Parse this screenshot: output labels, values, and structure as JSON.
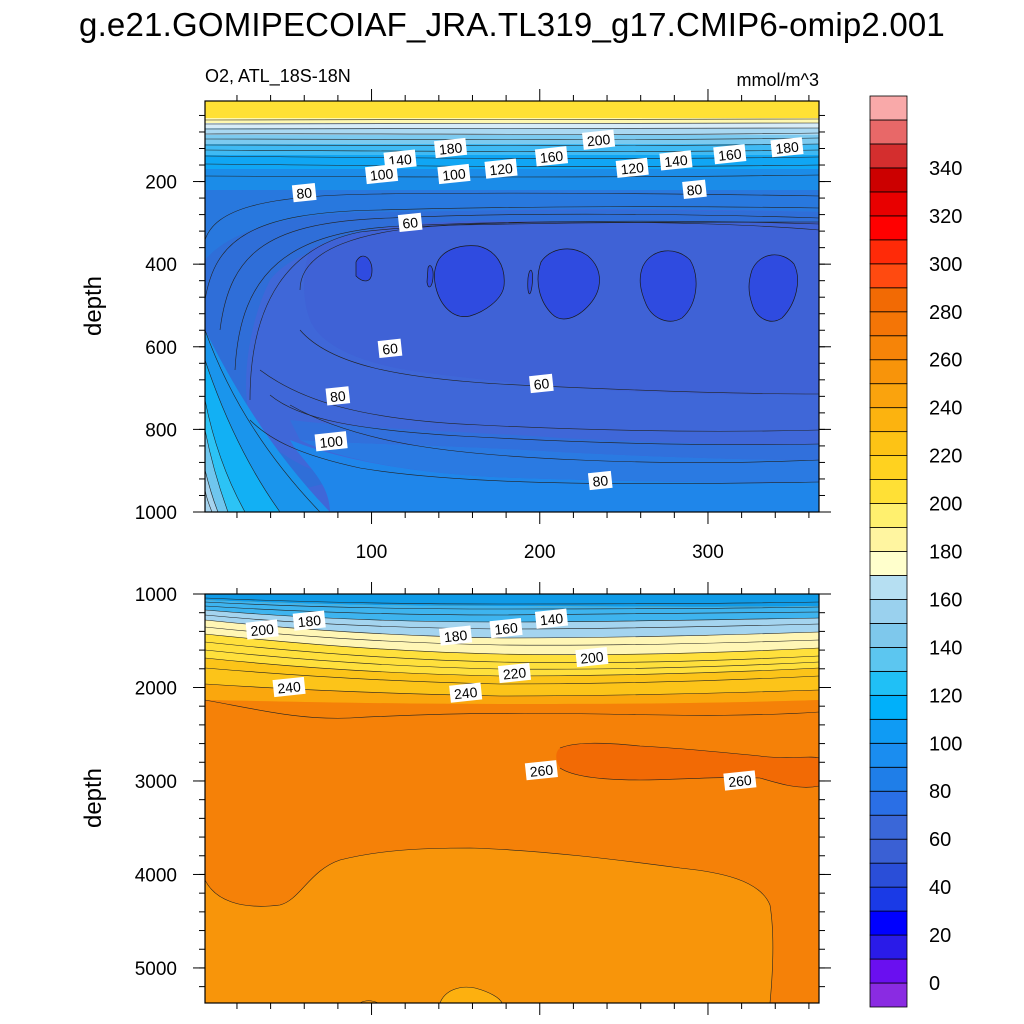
{
  "title": "g.e21.GOMIPECOIAF_JRA.TL319_g17.CMIP6-omip2.001",
  "chart_data": [
    {
      "type": "contour",
      "panel": "upper",
      "left_label": "O2, ATL_18S-18N",
      "right_label": "mmol/m^3",
      "xlabel": "",
      "ylabel": "depth",
      "xlim": [
        1,
        366
      ],
      "ylim": [
        1000,
        5
      ],
      "xticks": [
        100,
        200,
        300
      ],
      "yticks": [
        200,
        400,
        600,
        800,
        1000
      ],
      "contour_labels": [
        {
          "text": "200",
          "x": 235,
          "depth": 100
        },
        {
          "text": "180",
          "x": 147,
          "depth": 120
        },
        {
          "text": "180",
          "x": 347,
          "depth": 118
        },
        {
          "text": "160",
          "x": 207,
          "depth": 140
        },
        {
          "text": "160",
          "x": 313,
          "depth": 135
        },
        {
          "text": "140",
          "x": 117,
          "depth": 148
        },
        {
          "text": "140",
          "x": 281,
          "depth": 150
        },
        {
          "text": "120",
          "x": 177,
          "depth": 170
        },
        {
          "text": "120",
          "x": 255,
          "depth": 168
        },
        {
          "text": "100",
          "x": 106,
          "depth": 183
        },
        {
          "text": "100",
          "x": 149,
          "depth": 183
        },
        {
          "text": "80",
          "x": 60,
          "depth": 228
        },
        {
          "text": "80",
          "x": 292,
          "depth": 220
        },
        {
          "text": "60",
          "x": 123,
          "depth": 300
        },
        {
          "text": "60",
          "x": 111,
          "depth": 605
        },
        {
          "text": "60",
          "x": 201,
          "depth": 690
        },
        {
          "text": "80",
          "x": 80,
          "depth": 720
        },
        {
          "text": "100",
          "x": 76,
          "depth": 830
        },
        {
          "text": "80",
          "x": 236,
          "depth": 925
        }
      ]
    },
    {
      "type": "contour",
      "panel": "lower",
      "xlabel": "",
      "ylabel": "depth",
      "xlim": [
        1,
        366
      ],
      "ylim": [
        5375,
        1000
      ],
      "yticks": [
        1000,
        2000,
        3000,
        4000,
        5000
      ],
      "contour_labels": [
        {
          "text": "180",
          "x": 63,
          "depth": 1290
        },
        {
          "text": "200",
          "x": 35,
          "depth": 1385
        },
        {
          "text": "180",
          "x": 150,
          "depth": 1450
        },
        {
          "text": "160",
          "x": 180,
          "depth": 1370
        },
        {
          "text": "140",
          "x": 207,
          "depth": 1270
        },
        {
          "text": "200",
          "x": 231,
          "depth": 1680
        },
        {
          "text": "220",
          "x": 185,
          "depth": 1850
        },
        {
          "text": "240",
          "x": 51,
          "depth": 2000
        },
        {
          "text": "240",
          "x": 156,
          "depth": 2060
        },
        {
          "text": "260",
          "x": 201,
          "depth": 2890
        },
        {
          "text": "260",
          "x": 319,
          "depth": 3000
        }
      ]
    }
  ],
  "colorbar": {
    "levels": [
      "0",
      "20",
      "40",
      "60",
      "80",
      "100",
      "120",
      "140",
      "160",
      "180",
      "200",
      "220",
      "240",
      "260",
      "280",
      "300",
      "320",
      "340"
    ],
    "colors": [
      "#8a2be2",
      "#6a0ff0",
      "#2a1be8",
      "#0000ff",
      "#1a3ae6",
      "#2a4ed8",
      "#3a60d4",
      "#3a67d8",
      "#2a6fe6",
      "#1f7ee8",
      "#1a8df0",
      "#0f9bf4",
      "#00b0fa",
      "#20c0f6",
      "#5cc6f0",
      "#7ec8ec",
      "#9ad1ee",
      "#b6dff2",
      "#ffffcc",
      "#fff5a0",
      "#fff06e",
      "#ffe035",
      "#ffd21f",
      "#fdc315",
      "#fcb30f",
      "#faa30d",
      "#f8940a",
      "#f68408",
      "#f47506",
      "#f26a04",
      "#ff4a10",
      "#ff2a08",
      "#ff0000",
      "#e80000",
      "#cc0000",
      "#d42e2e",
      "#e86868",
      "#f9a9a9"
    ]
  }
}
